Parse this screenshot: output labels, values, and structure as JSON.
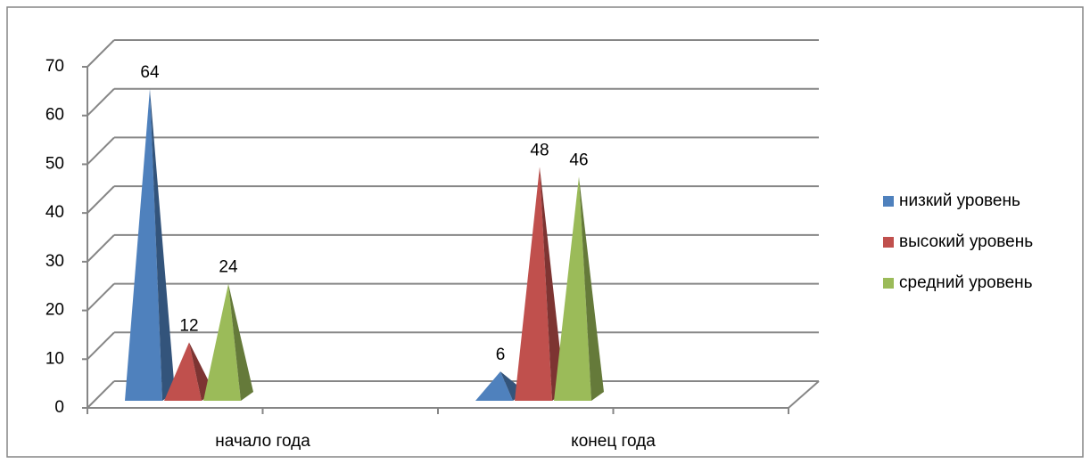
{
  "chart_data": {
    "type": "pyramid3d",
    "categories": [
      "начало года",
      "конец года"
    ],
    "series": [
      {
        "name": "низкий уровень",
        "color": "#4f81bd",
        "values": [
          64,
          6
        ]
      },
      {
        "name": "высокий уровень",
        "color": "#c0504d",
        "values": [
          12,
          48
        ]
      },
      {
        "name": "средний уровень",
        "color": "#9bbb59",
        "values": [
          24,
          46
        ]
      }
    ],
    "ylim": [
      0,
      70
    ],
    "yticks": [
      0,
      10,
      20,
      30,
      40,
      50,
      60,
      70
    ],
    "grid": true,
    "legend": "right"
  }
}
